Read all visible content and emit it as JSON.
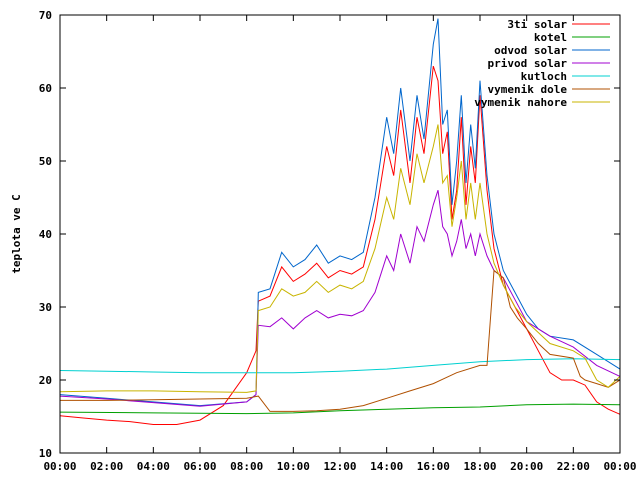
{
  "chart_data": {
    "type": "line",
    "title": "",
    "xlabel": "",
    "ylabel": "teplota ve C",
    "xlim": [
      0,
      24
    ],
    "ylim": [
      10,
      70
    ],
    "grid": false,
    "legend_position": "top-right",
    "x_ticks": [
      "00:00",
      "02:00",
      "04:00",
      "06:00",
      "08:00",
      "10:00",
      "12:00",
      "14:00",
      "16:00",
      "18:00",
      "20:00",
      "22:00",
      "00:00"
    ],
    "y_ticks": [
      10,
      20,
      30,
      40,
      50,
      60,
      70
    ],
    "series": [
      {
        "name": "3ti solar",
        "color": "#ff0000",
        "points": [
          [
            0,
            15.1
          ],
          [
            1,
            14.8
          ],
          [
            2,
            14.5
          ],
          [
            3,
            14.3
          ],
          [
            4,
            13.9
          ],
          [
            5,
            13.9
          ],
          [
            6,
            14.5
          ],
          [
            7,
            16.5
          ],
          [
            8,
            21
          ],
          [
            8.4,
            24
          ],
          [
            8.5,
            30.8
          ],
          [
            9,
            31.5
          ],
          [
            9.5,
            35.5
          ],
          [
            10,
            33.5
          ],
          [
            10.5,
            34.5
          ],
          [
            11,
            36
          ],
          [
            11.5,
            34
          ],
          [
            12,
            35
          ],
          [
            12.5,
            34.5
          ],
          [
            13,
            35.5
          ],
          [
            13.5,
            42
          ],
          [
            14,
            52
          ],
          [
            14.3,
            48
          ],
          [
            14.6,
            57
          ],
          [
            15,
            47
          ],
          [
            15.3,
            56
          ],
          [
            15.6,
            51
          ],
          [
            16,
            63
          ],
          [
            16.2,
            61
          ],
          [
            16.4,
            51
          ],
          [
            16.6,
            54
          ],
          [
            16.8,
            42
          ],
          [
            17,
            46
          ],
          [
            17.2,
            56
          ],
          [
            17.4,
            44
          ],
          [
            17.6,
            52
          ],
          [
            17.8,
            47
          ],
          [
            18,
            59
          ],
          [
            18.3,
            46
          ],
          [
            18.6,
            38
          ],
          [
            19,
            33
          ],
          [
            19.5,
            30
          ],
          [
            20,
            27
          ],
          [
            20.5,
            24
          ],
          [
            21,
            21
          ],
          [
            21.5,
            20
          ],
          [
            22,
            20
          ],
          [
            22.5,
            19.3
          ],
          [
            23,
            17
          ],
          [
            23.5,
            16
          ],
          [
            24,
            15.3
          ]
        ]
      },
      {
        "name": "kotel",
        "color": "#00a000",
        "points": [
          [
            0,
            15.6
          ],
          [
            4,
            15.5
          ],
          [
            8,
            15.4
          ],
          [
            10,
            15.5
          ],
          [
            12,
            15.8
          ],
          [
            14,
            16
          ],
          [
            16,
            16.2
          ],
          [
            18,
            16.3
          ],
          [
            20,
            16.6
          ],
          [
            22,
            16.7
          ],
          [
            24,
            16.6
          ]
        ]
      },
      {
        "name": "odvod solar",
        "color": "#0066cc",
        "points": [
          [
            0,
            18
          ],
          [
            2,
            17.5
          ],
          [
            4,
            17
          ],
          [
            6,
            16.5
          ],
          [
            8,
            17
          ],
          [
            8.4,
            18
          ],
          [
            8.5,
            32
          ],
          [
            9,
            32.5
          ],
          [
            9.5,
            37.5
          ],
          [
            10,
            35.5
          ],
          [
            10.5,
            36.5
          ],
          [
            11,
            38.5
          ],
          [
            11.5,
            36
          ],
          [
            12,
            37
          ],
          [
            12.5,
            36.5
          ],
          [
            13,
            37.5
          ],
          [
            13.5,
            45
          ],
          [
            14,
            56
          ],
          [
            14.3,
            51
          ],
          [
            14.6,
            60
          ],
          [
            15,
            50
          ],
          [
            15.3,
            59
          ],
          [
            15.6,
            53
          ],
          [
            16,
            66
          ],
          [
            16.2,
            69.5
          ],
          [
            16.4,
            55
          ],
          [
            16.6,
            57
          ],
          [
            16.8,
            44
          ],
          [
            17,
            50
          ],
          [
            17.2,
            59
          ],
          [
            17.4,
            47
          ],
          [
            17.6,
            55
          ],
          [
            17.8,
            49
          ],
          [
            18,
            61
          ],
          [
            18.3,
            48
          ],
          [
            18.6,
            40
          ],
          [
            19,
            35
          ],
          [
            19.5,
            32
          ],
          [
            20,
            29
          ],
          [
            20.5,
            27
          ],
          [
            21,
            26
          ],
          [
            22,
            25.5
          ],
          [
            23,
            23.5
          ],
          [
            24,
            21.5
          ]
        ]
      },
      {
        "name": "privod solar",
        "color": "#a000d0",
        "points": [
          [
            0,
            17.8
          ],
          [
            2,
            17.4
          ],
          [
            4,
            16.9
          ],
          [
            6,
            16.4
          ],
          [
            8,
            17
          ],
          [
            8.4,
            18
          ],
          [
            8.5,
            27.5
          ],
          [
            9,
            27.3
          ],
          [
            9.5,
            28.5
          ],
          [
            10,
            27
          ],
          [
            10.5,
            28.5
          ],
          [
            11,
            29.5
          ],
          [
            11.5,
            28.5
          ],
          [
            12,
            29
          ],
          [
            12.5,
            28.8
          ],
          [
            13,
            29.5
          ],
          [
            13.5,
            32
          ],
          [
            14,
            37
          ],
          [
            14.3,
            35
          ],
          [
            14.6,
            40
          ],
          [
            15,
            36
          ],
          [
            15.3,
            41
          ],
          [
            15.6,
            39
          ],
          [
            16,
            44
          ],
          [
            16.2,
            46
          ],
          [
            16.4,
            41
          ],
          [
            16.6,
            40
          ],
          [
            16.8,
            37
          ],
          [
            17,
            39
          ],
          [
            17.2,
            42
          ],
          [
            17.4,
            38
          ],
          [
            17.6,
            40
          ],
          [
            17.8,
            37
          ],
          [
            18,
            40
          ],
          [
            18.3,
            37
          ],
          [
            18.6,
            35
          ],
          [
            19,
            34
          ],
          [
            19.5,
            31
          ],
          [
            20,
            28
          ],
          [
            21,
            26
          ],
          [
            22,
            24.5
          ],
          [
            23,
            22
          ],
          [
            24,
            20.5
          ]
        ]
      },
      {
        "name": "kutloch",
        "color": "#00d0d0",
        "points": [
          [
            0,
            21.3
          ],
          [
            2,
            21.2
          ],
          [
            4,
            21.1
          ],
          [
            6,
            21
          ],
          [
            8,
            21
          ],
          [
            10,
            21
          ],
          [
            12,
            21.2
          ],
          [
            14,
            21.5
          ],
          [
            16,
            22
          ],
          [
            18,
            22.5
          ],
          [
            20,
            22.8
          ],
          [
            22,
            22.9
          ],
          [
            24,
            22.8
          ]
        ]
      },
      {
        "name": "vymenik dole",
        "color": "#b05000",
        "points": [
          [
            0,
            17.2
          ],
          [
            2,
            17.2
          ],
          [
            4,
            17.3
          ],
          [
            6,
            17.4
          ],
          [
            8,
            17.5
          ],
          [
            8.5,
            17.8
          ],
          [
            9,
            15.7
          ],
          [
            10,
            15.7
          ],
          [
            11,
            15.8
          ],
          [
            12,
            16
          ],
          [
            13,
            16.5
          ],
          [
            14,
            17.5
          ],
          [
            15,
            18.5
          ],
          [
            16,
            19.5
          ],
          [
            17,
            21
          ],
          [
            18,
            22
          ],
          [
            18.3,
            22
          ],
          [
            18.6,
            35
          ],
          [
            19,
            34
          ],
          [
            19.3,
            30
          ],
          [
            19.6,
            28.5
          ],
          [
            20,
            27
          ],
          [
            20.5,
            25
          ],
          [
            21,
            23.5
          ],
          [
            22,
            23
          ],
          [
            22.3,
            20.5
          ],
          [
            22.5,
            20
          ],
          [
            23,
            19.5
          ],
          [
            23.5,
            19
          ],
          [
            24,
            20
          ]
        ]
      },
      {
        "name": "vymenik nahore",
        "color": "#c8b400",
        "points": [
          [
            0,
            18.4
          ],
          [
            2,
            18.5
          ],
          [
            4,
            18.5
          ],
          [
            6,
            18.4
          ],
          [
            8,
            18.3
          ],
          [
            8.4,
            18.5
          ],
          [
            8.5,
            29.5
          ],
          [
            9,
            30
          ],
          [
            9.5,
            32.5
          ],
          [
            10,
            31.5
          ],
          [
            10.5,
            32
          ],
          [
            11,
            33.5
          ],
          [
            11.5,
            32
          ],
          [
            12,
            33
          ],
          [
            12.5,
            32.5
          ],
          [
            13,
            33.5
          ],
          [
            13.5,
            38
          ],
          [
            14,
            45
          ],
          [
            14.3,
            42
          ],
          [
            14.6,
            49
          ],
          [
            15,
            44
          ],
          [
            15.3,
            51
          ],
          [
            15.6,
            47
          ],
          [
            16,
            52
          ],
          [
            16.2,
            55
          ],
          [
            16.4,
            47
          ],
          [
            16.6,
            48
          ],
          [
            16.8,
            41
          ],
          [
            17,
            45
          ],
          [
            17.2,
            50
          ],
          [
            17.4,
            42
          ],
          [
            17.6,
            47
          ],
          [
            17.8,
            42
          ],
          [
            18,
            47
          ],
          [
            18.3,
            40
          ],
          [
            18.6,
            36
          ],
          [
            19,
            33
          ],
          [
            19.5,
            30
          ],
          [
            20,
            28
          ],
          [
            21,
            25
          ],
          [
            22,
            24
          ],
          [
            22.5,
            23
          ],
          [
            23,
            20
          ],
          [
            23.5,
            19
          ],
          [
            24,
            20.5
          ]
        ]
      }
    ]
  }
}
